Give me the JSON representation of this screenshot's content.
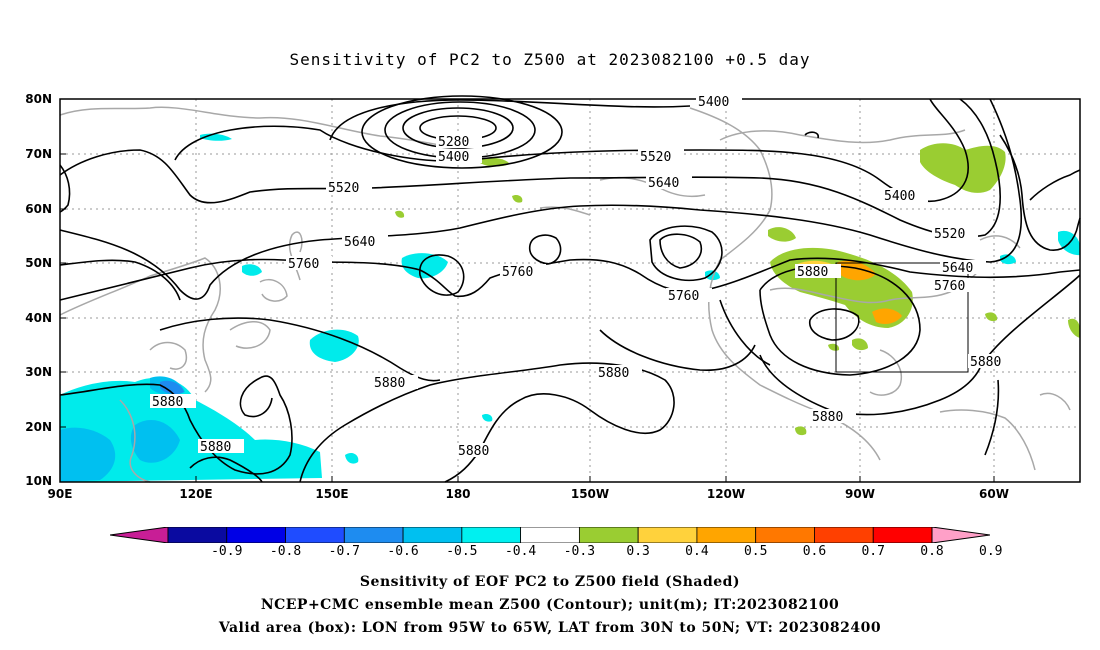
{
  "title": "Sensitivity of PC2 to Z500 at 2023082100 +0.5 day",
  "lat_labels": [
    "80N",
    "70N",
    "60N",
    "50N",
    "40N",
    "30N",
    "20N",
    "10N"
  ],
  "lon_labels": [
    "90E",
    "120E",
    "150E",
    "180",
    "150W",
    "120W",
    "90W",
    "60W"
  ],
  "contour_labels": {
    "c5400_top": "5400",
    "c5280": "5280",
    "c5400_low": "5400",
    "c5520_left": "5520",
    "c5520_mid": "5520",
    "c5640_mid": "5640",
    "c5640_left": "5640",
    "c5760_left": "5760",
    "c5760_mid": "5760",
    "c5760_pac": "5760",
    "c5400_east": "5400",
    "c5520_east": "5520",
    "c5640_east": "5640",
    "c5760_east": "5760",
    "c5880_high": "5880",
    "c5880_right": "5880",
    "c5880_mex": "5880",
    "c5880_pac": "5880",
    "c5880_mid": "5880",
    "c5880_asia1": "5880",
    "c5880_asia2": "5880",
    "c5880_pac2": "5880"
  },
  "colorbar": {
    "labels": [
      "-0.9",
      "-0.8",
      "-0.7",
      "-0.6",
      "-0.5",
      "-0.4",
      "-0.3",
      "0.3",
      "0.4",
      "0.5",
      "0.6",
      "0.7",
      "0.8",
      "0.9"
    ],
    "colors": [
      "#0a0aa0",
      "#0000e6",
      "#1f4cff",
      "#1e8cf0",
      "#00c0f0",
      "#00f0f0",
      "#ffffff",
      "#9acd32",
      "#ffd23c",
      "#ffa500",
      "#ff7800",
      "#ff4000",
      "#ff0000"
    ],
    "left_arrow_color": "#c81e96",
    "right_arrow_color": "#ffa0c8"
  },
  "captions": [
    "Sensitivity of EOF PC2 to Z500 field (Shaded)",
    "NCEP+CMC ensemble mean Z500 (Contour); unit(m); IT:2023082100",
    "Valid area (box): LON from 95W to 65W, LAT from 30N to 50N; VT: 2023082400"
  ]
}
